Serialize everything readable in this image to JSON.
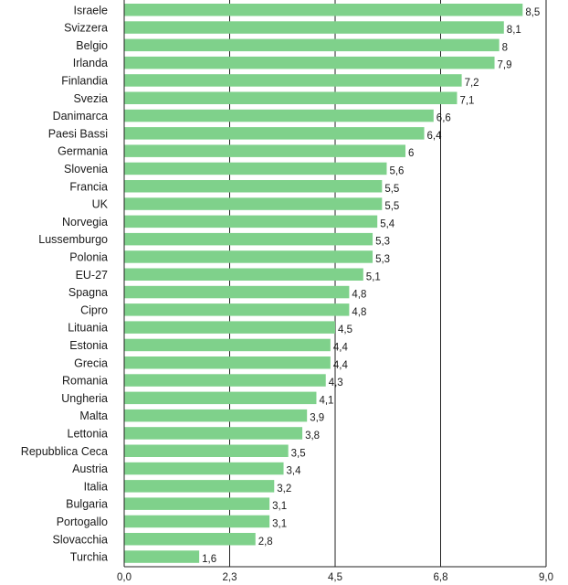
{
  "chart_data": {
    "type": "bar",
    "orientation": "horizontal",
    "categories": [
      "Israele",
      "Svizzera",
      "Belgio",
      "Irlanda",
      "Finlandia",
      "Svezia",
      "Danimarca",
      "Paesi Bassi",
      "Germania",
      "Slovenia",
      "Francia",
      "UK",
      "Norvegia",
      "Lussemburgo",
      "Polonia",
      "EU-27",
      "Spagna",
      "Cipro",
      "Lituania",
      "Estonia",
      "Grecia",
      "Romania",
      "Ungheria",
      "Malta",
      "Lettonia",
      "Repubblica Ceca",
      "Austria",
      "Italia",
      "Bulgaria",
      "Portogallo",
      "Slovacchia",
      "Turchia"
    ],
    "values": [
      8.5,
      8.1,
      8,
      7.9,
      7.2,
      7.1,
      6.6,
      6.4,
      6,
      5.6,
      5.5,
      5.5,
      5.4,
      5.3,
      5.3,
      5.1,
      4.8,
      4.8,
      4.5,
      4.4,
      4.4,
      4.3,
      4.1,
      3.9,
      3.8,
      3.5,
      3.4,
      3.2,
      3.1,
      3.1,
      2.8,
      1.6
    ],
    "value_labels": [
      "8,5",
      "8,1",
      "8",
      "7,9",
      "7,2",
      "7,1",
      "6,6",
      "6,4",
      "6",
      "5,6",
      "5,5",
      "5,5",
      "5,4",
      "5,3",
      "5,3",
      "5,1",
      "4,8",
      "4,8",
      "4,5",
      "4,4",
      "4,4",
      "4,3",
      "4,1",
      "3,9",
      "3,8",
      "3,5",
      "3,4",
      "3,2",
      "3,1",
      "3,1",
      "2,8",
      "1,6"
    ],
    "xticks": [
      0,
      2.25,
      4.5,
      6.75,
      9
    ],
    "xtick_labels": [
      "0,0",
      "2,3",
      "4,5",
      "6,8",
      "9,0"
    ],
    "xlim": [
      0,
      9
    ],
    "grid": true,
    "title": "",
    "xlabel": "",
    "ylabel": ""
  },
  "colors": {
    "bar": "#7fd18b",
    "grid": "#222222",
    "text": "#1a1a1a"
  }
}
